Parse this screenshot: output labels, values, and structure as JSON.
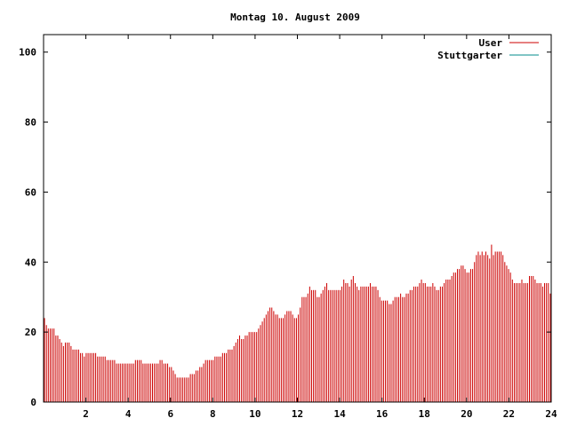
{
  "chart_data": {
    "type": "bar",
    "title": "Montag 10. August 2009",
    "xlabel": "",
    "ylabel": "",
    "xlim": [
      0,
      24
    ],
    "ylim": [
      0,
      105
    ],
    "xticks": [
      2,
      4,
      6,
      8,
      10,
      12,
      14,
      16,
      18,
      20,
      22,
      24
    ],
    "yticks": [
      0,
      20,
      40,
      60,
      80,
      100
    ],
    "grid": false,
    "legend_position": "top-right",
    "series": [
      {
        "name": "User",
        "color": "#cc0000",
        "values": [
          24,
          22,
          21,
          21,
          21,
          21,
          19,
          19,
          18,
          17,
          16,
          17,
          17,
          17,
          16,
          15,
          15,
          15,
          15,
          14,
          14,
          13,
          14,
          14,
          14,
          14,
          14,
          14,
          13,
          13,
          13,
          13,
          13,
          12,
          12,
          12,
          12,
          12,
          11,
          11,
          11,
          11,
          11,
          11,
          11,
          11,
          11,
          11,
          12,
          12,
          12,
          12,
          11,
          11,
          11,
          11,
          11,
          11,
          11,
          11,
          11,
          12,
          12,
          11,
          11,
          11,
          10,
          10,
          9,
          8,
          7,
          7,
          7,
          7,
          7,
          7,
          7,
          8,
          8,
          8,
          9,
          9,
          10,
          10,
          11,
          12,
          12,
          12,
          12,
          12,
          13,
          13,
          13,
          13,
          14,
          14,
          14,
          15,
          15,
          15,
          16,
          17,
          18,
          19,
          18,
          18,
          19,
          19,
          20,
          20,
          20,
          20,
          20,
          21,
          22,
          23,
          24,
          25,
          26,
          27,
          27,
          26,
          25,
          25,
          24,
          24,
          24,
          25,
          26,
          26,
          26,
          25,
          24,
          24,
          25,
          27,
          30,
          30,
          30,
          31,
          33,
          32,
          32,
          32,
          30,
          30,
          31,
          32,
          33,
          34,
          32,
          32,
          32,
          32,
          32,
          32,
          32,
          33,
          35,
          34,
          34,
          33,
          35,
          36,
          34,
          33,
          32,
          33,
          33,
          33,
          33,
          33,
          34,
          33,
          33,
          33,
          32,
          30,
          29,
          29,
          29,
          29,
          28,
          28,
          29,
          30,
          30,
          30,
          31,
          30,
          30,
          31,
          31,
          32,
          32,
          33,
          33,
          33,
          34,
          35,
          34,
          34,
          33,
          33,
          33,
          34,
          33,
          32,
          32,
          33,
          33,
          34,
          35,
          35,
          35,
          36,
          37,
          37,
          38,
          38,
          39,
          39,
          38,
          37,
          37,
          38,
          38,
          40,
          42,
          43,
          42,
          43,
          42,
          43,
          42,
          41,
          45,
          42,
          43,
          43,
          43,
          43,
          42,
          40,
          39,
          38,
          37,
          35,
          34,
          34,
          34,
          34,
          35,
          34,
          34,
          34,
          36,
          36,
          36,
          35,
          34,
          34,
          34,
          33,
          34,
          34,
          34,
          31
        ]
      },
      {
        "name": "Stuttgarter",
        "color": "#008b8b",
        "values": []
      }
    ]
  }
}
